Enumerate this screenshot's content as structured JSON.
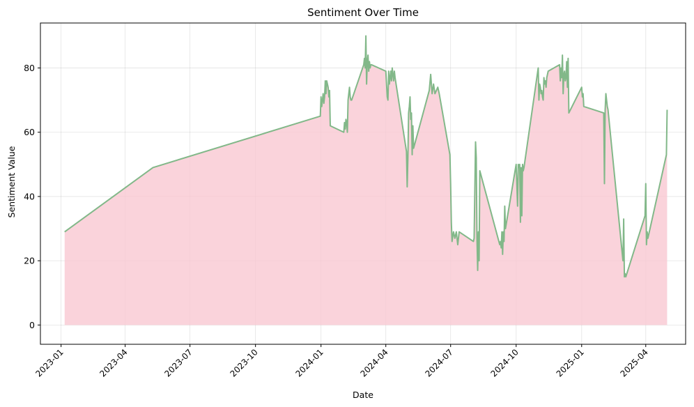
{
  "chart_data": {
    "type": "area",
    "title": "Sentiment Over Time",
    "xlabel": "Date",
    "ylabel": "Sentiment Value",
    "xlim": [
      "2022-12-03",
      "2025-05-27"
    ],
    "ylim": [
      -6,
      94
    ],
    "grid": true,
    "x_ticks": [
      {
        "date": "2023-01-01",
        "label": "2023-01"
      },
      {
        "date": "2023-04-01",
        "label": "2023-04"
      },
      {
        "date": "2023-07-01",
        "label": "2023-07"
      },
      {
        "date": "2023-10-01",
        "label": "2023-10"
      },
      {
        "date": "2024-01-01",
        "label": "2024-01"
      },
      {
        "date": "2024-04-01",
        "label": "2024-04"
      },
      {
        "date": "2024-07-01",
        "label": "2024-07"
      },
      {
        "date": "2024-10-01",
        "label": "2024-10"
      },
      {
        "date": "2025-01-01",
        "label": "2025-01"
      },
      {
        "date": "2025-04-01",
        "label": "2025-04"
      }
    ],
    "y_ticks": [
      0,
      20,
      40,
      60,
      80
    ],
    "colors": {
      "line": "#82b889",
      "fill": "#f9c8d2"
    },
    "series": [
      {
        "x": [
          "2023-01-06",
          "2023-05-10",
          "2023-12-31",
          "2024-01-01",
          "2024-01-02",
          "2024-01-03",
          "2024-01-04",
          "2024-01-05",
          "2024-01-06",
          "2024-01-07",
          "2024-01-08",
          "2024-01-09",
          "2024-01-10",
          "2024-01-11",
          "2024-01-12",
          "2024-01-13",
          "2024-01-14",
          "2024-02-02",
          "2024-02-03",
          "2024-02-04",
          "2024-02-05",
          "2024-02-06",
          "2024-02-07",
          "2024-02-08",
          "2024-02-09",
          "2024-02-10",
          "2024-02-11",
          "2024-02-12",
          "2024-02-13",
          "2024-03-01",
          "2024-03-02",
          "2024-03-03",
          "2024-03-04",
          "2024-03-05",
          "2024-03-06",
          "2024-03-07",
          "2024-03-08",
          "2024-03-09",
          "2024-03-10",
          "2024-03-11",
          "2024-03-12",
          "2024-04-01",
          "2024-04-02",
          "2024-04-03",
          "2024-04-04",
          "2024-04-05",
          "2024-04-06",
          "2024-04-07",
          "2024-04-08",
          "2024-04-09",
          "2024-04-10",
          "2024-04-11",
          "2024-04-12",
          "2024-04-13",
          "2024-04-14",
          "2024-04-30",
          "2024-05-01",
          "2024-05-02",
          "2024-05-03",
          "2024-05-04",
          "2024-05-05",
          "2024-05-06",
          "2024-05-07",
          "2024-05-08",
          "2024-05-09",
          "2024-05-10",
          "2024-06-01",
          "2024-06-03",
          "2024-06-05",
          "2024-06-07",
          "2024-06-09",
          "2024-06-11",
          "2024-06-13",
          "2024-06-15",
          "2024-06-30",
          "2024-07-01",
          "2024-07-02",
          "2024-07-03",
          "2024-07-05",
          "2024-07-07",
          "2024-07-09",
          "2024-07-11",
          "2024-07-13",
          "2024-08-02",
          "2024-08-03",
          "2024-08-05",
          "2024-08-06",
          "2024-08-07",
          "2024-08-08",
          "2024-08-09",
          "2024-08-10",
          "2024-08-11",
          "2024-09-08",
          "2024-09-09",
          "2024-09-10",
          "2024-09-11",
          "2024-09-12",
          "2024-09-13",
          "2024-09-14",
          "2024-09-15",
          "2024-09-16",
          "2024-10-01",
          "2024-10-03",
          "2024-10-04",
          "2024-10-05",
          "2024-10-06",
          "2024-10-07",
          "2024-10-08",
          "2024-10-09",
          "2024-10-10",
          "2024-10-11",
          "2024-10-12",
          "2024-11-01",
          "2024-11-02",
          "2024-11-03",
          "2024-11-04",
          "2024-11-05",
          "2024-11-06",
          "2024-11-07",
          "2024-11-08",
          "2024-11-09",
          "2024-11-10",
          "2024-11-11",
          "2024-11-12",
          "2024-11-13",
          "2024-11-14",
          "2024-11-15",
          "2024-12-01",
          "2024-12-02",
          "2024-12-03",
          "2024-12-04",
          "2024-12-05",
          "2024-12-06",
          "2024-12-07",
          "2024-12-08",
          "2024-12-09",
          "2024-12-10",
          "2024-12-11",
          "2024-12-12",
          "2024-12-13",
          "2024-12-14",
          "2025-01-01",
          "2025-01-02",
          "2025-01-03",
          "2025-01-04",
          "2025-02-01",
          "2025-02-02",
          "2025-02-03",
          "2025-02-04",
          "2025-02-05",
          "2025-02-06",
          "2025-02-07",
          "2025-02-28",
          "2025-03-01",
          "2025-03-02",
          "2025-03-03",
          "2025-03-04",
          "2025-03-31",
          "2025-04-01",
          "2025-04-02",
          "2025-04-03",
          "2025-04-04",
          "2025-04-05",
          "2025-04-06",
          "2025-04-30",
          "2025-05-01"
        ],
        "y": [
          29,
          49,
          65,
          71,
          68,
          70,
          72,
          69,
          71,
          76,
          72,
          76,
          75,
          74,
          71,
          73,
          62,
          60,
          63,
          61,
          64,
          63,
          60,
          70,
          72,
          74,
          71,
          70,
          70,
          81,
          83,
          80,
          90,
          75,
          82,
          84,
          79,
          82,
          80,
          81,
          81,
          79,
          75,
          71,
          70,
          79,
          75,
          77,
          79,
          76,
          80,
          78,
          76,
          79,
          77,
          54,
          43,
          52,
          66,
          68,
          71,
          64,
          66,
          53,
          62,
          55,
          73,
          78,
          72,
          75,
          72,
          73,
          74,
          72,
          53,
          44,
          32,
          26,
          29,
          27,
          29,
          25,
          29,
          26,
          27,
          57,
          52,
          27,
          17,
          29,
          20,
          48,
          25,
          26,
          24,
          29,
          22,
          29,
          26,
          37,
          30,
          50,
          37,
          50,
          49,
          50,
          32,
          49,
          34,
          50,
          48,
          49,
          80,
          70,
          75,
          74,
          72,
          73,
          71,
          70,
          77,
          75,
          76,
          74,
          77,
          78,
          79,
          81,
          76,
          80,
          77,
          84,
          72,
          78,
          79,
          76,
          77,
          82,
          74,
          83,
          66,
          74,
          71,
          72,
          68,
          66,
          44,
          67,
          72,
          70,
          68,
          67,
          20,
          33,
          15,
          16,
          15,
          34,
          44,
          25,
          29,
          27,
          28,
          29,
          53,
          67
        ]
      }
    ]
  }
}
